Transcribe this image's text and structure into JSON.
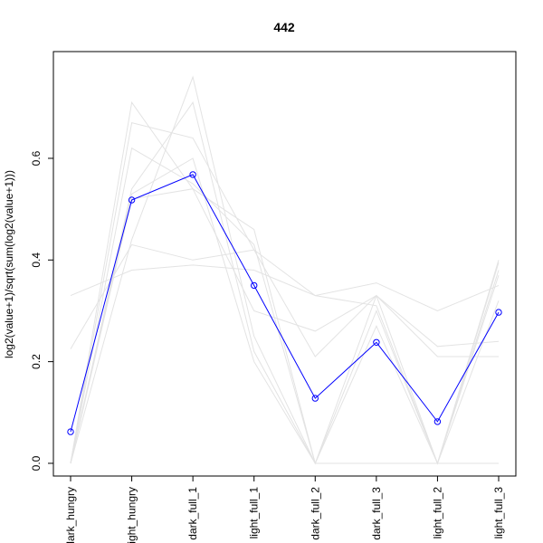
{
  "chart_data": {
    "type": "line",
    "title": "442",
    "ylabel": "log2(value+1)/sqrt(sum(log2(value+1)))",
    "xlabel": "",
    "categories": [
      "dark_hungry",
      "light_hungry",
      "dark_full_1",
      "light_full_1",
      "dark_full_2",
      "dark_full_3",
      "light_full_2",
      "light_full_3"
    ],
    "yticks": [
      0.0,
      0.2,
      0.4,
      0.6
    ],
    "ytick_labels": [
      "0.0",
      "0.2",
      "0.4",
      "0.6"
    ],
    "ylim": [
      -0.025,
      0.81
    ],
    "grid": false,
    "highlight": {
      "color": "#0000ff",
      "marker": "open-circle",
      "values": [
        0.062,
        0.518,
        0.568,
        0.35,
        0.128,
        0.238,
        0.082,
        0.297
      ]
    },
    "background_series": {
      "color": "#e3e3e3",
      "series": [
        [
          0.33,
          0.38,
          0.39,
          0.38,
          0.33,
          0.355,
          0.3,
          0.35
        ],
        [
          0.225,
          0.43,
          0.4,
          0.42,
          0.33,
          0.31,
          0.0,
          0.395
        ],
        [
          0.0,
          0.71,
          0.54,
          0.3,
          0.26,
          0.33,
          0.21,
          0.21
        ],
        [
          0.0,
          0.67,
          0.64,
          0.42,
          0.21,
          0.33,
          0.0,
          0.38
        ],
        [
          0.0,
          0.44,
          0.76,
          0.25,
          0.0,
          0.3,
          0.0,
          0.4
        ],
        [
          0.0,
          0.54,
          0.71,
          0.22,
          0.0,
          0.27,
          0.0,
          0.37
        ],
        [
          0.0,
          0.53,
          0.6,
          0.2,
          0.0,
          0.0,
          0.0,
          0.0
        ],
        [
          0.0,
          0.52,
          0.54,
          0.46,
          0.0,
          0.33,
          0.23,
          0.24
        ],
        [
          0.0,
          0.62,
          0.55,
          0.43,
          0.0,
          0.0,
          0.0,
          0.32
        ]
      ]
    }
  }
}
